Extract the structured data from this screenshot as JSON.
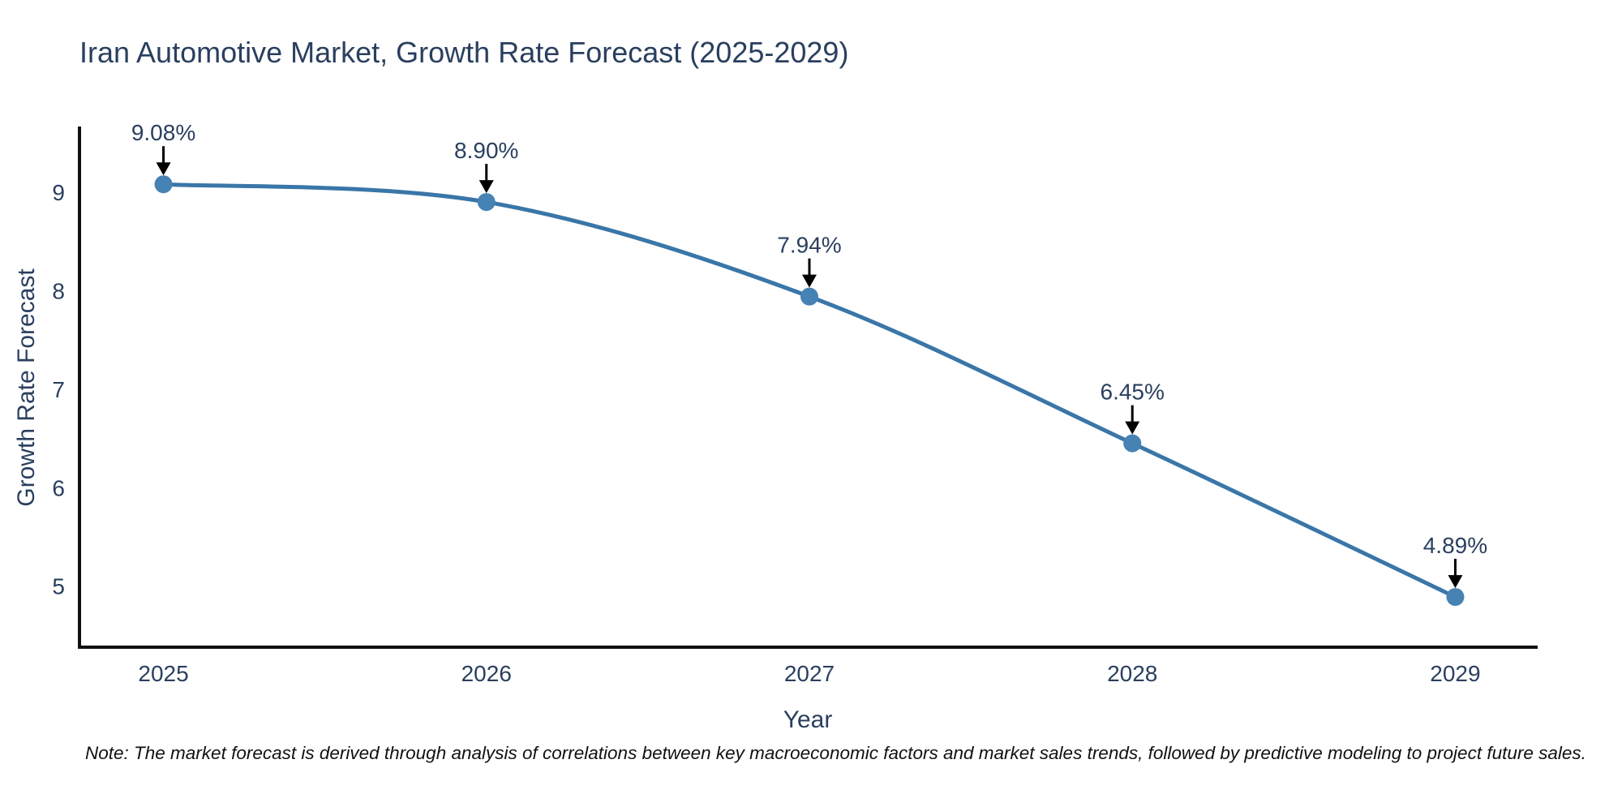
{
  "title": "Iran Automotive Market, Growth Rate Forecast (2025-2029)",
  "note": "Note: The market forecast is derived through analysis of correlations between key macroeconomic factors and market sales trends, followed by predictive modeling to project future sales.",
  "colors": {
    "title_text": "#2a3f5f",
    "tick_text": "#2a3f5f",
    "annotation_text": "#2a3f5f",
    "axis_line": "#101010",
    "line": "#3a76a8",
    "marker": "#4682b4",
    "arrow": "#000000",
    "note_text": "#111111",
    "background": "#ffffff"
  },
  "chart_data": {
    "type": "line",
    "title": "Iran Automotive Market, Growth Rate Forecast (2025-2029)",
    "xlabel": "Year",
    "ylabel": "Growth Rate Forecast",
    "x": [
      2025,
      2026,
      2027,
      2028,
      2029
    ],
    "y": [
      9.08,
      8.9,
      7.94,
      6.45,
      4.89
    ],
    "point_labels": [
      "9.08%",
      "8.90%",
      "7.94%",
      "6.45%",
      "4.89%"
    ],
    "xticks": [
      2025,
      2026,
      2027,
      2028,
      2029
    ],
    "yticks": [
      5,
      6,
      7,
      8,
      9
    ],
    "xlim": [
      2024.74,
      2029.25
    ],
    "ylim": [
      4.38,
      9.65
    ],
    "line_shape": "spline",
    "grid": false,
    "legend": "none",
    "annotations": "percentage value labels with black down-arrows above each data point"
  }
}
